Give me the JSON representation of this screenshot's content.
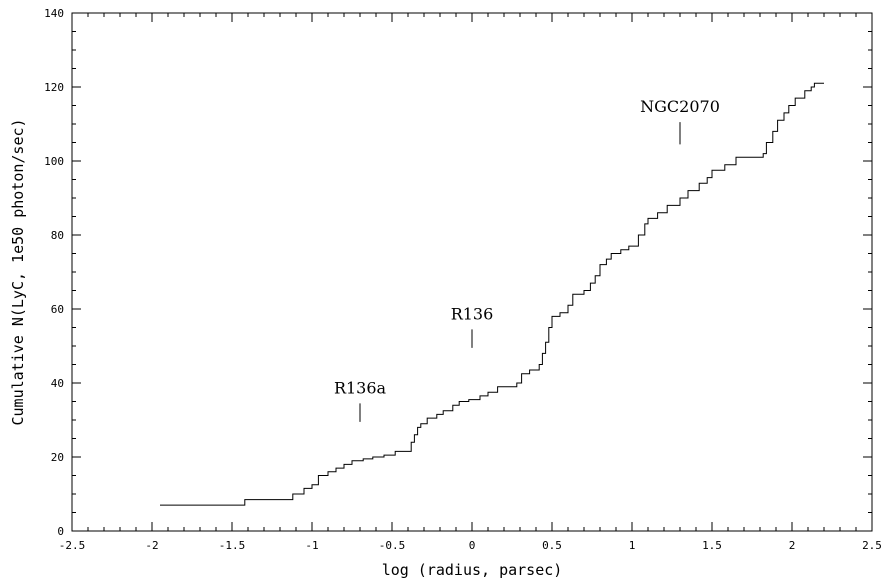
{
  "chart_data": {
    "type": "line",
    "xlabel": "log (radius, parsec)",
    "ylabel": "Cumulative N(LyC, 1e50 photon/sec)",
    "xlim": [
      -2.5,
      2.5
    ],
    "ylim": [
      0,
      140
    ],
    "xticks": [
      "-2.5",
      "-2",
      "-1.5",
      "-1",
      "-0.5",
      "0",
      "0.5",
      "1",
      "1.5",
      "2",
      "2.5"
    ],
    "yticks": [
      "0",
      "20",
      "40",
      "60",
      "80",
      "100",
      "120",
      "140"
    ],
    "grid": false,
    "line_shape": "step",
    "series": [
      {
        "points": [
          [
            -1.95,
            7
          ],
          [
            -1.42,
            7
          ],
          [
            -1.42,
            8.5
          ],
          [
            -1.12,
            8.5
          ],
          [
            -1.12,
            10
          ],
          [
            -1.05,
            10
          ],
          [
            -1.05,
            11.5
          ],
          [
            -1.0,
            11.5
          ],
          [
            -1.0,
            12.5
          ],
          [
            -0.96,
            12.5
          ],
          [
            -0.96,
            15
          ],
          [
            -0.9,
            15
          ],
          [
            -0.9,
            16
          ],
          [
            -0.85,
            16
          ],
          [
            -0.85,
            17
          ],
          [
            -0.8,
            17
          ],
          [
            -0.8,
            18
          ],
          [
            -0.75,
            18
          ],
          [
            -0.75,
            19
          ],
          [
            -0.68,
            19
          ],
          [
            -0.68,
            19.5
          ],
          [
            -0.62,
            19.5
          ],
          [
            -0.62,
            20
          ],
          [
            -0.55,
            20
          ],
          [
            -0.55,
            20.5
          ],
          [
            -0.48,
            20.5
          ],
          [
            -0.48,
            21.5
          ],
          [
            -0.38,
            21.5
          ],
          [
            -0.38,
            24
          ],
          [
            -0.36,
            24
          ],
          [
            -0.36,
            26
          ],
          [
            -0.34,
            26
          ],
          [
            -0.34,
            28
          ],
          [
            -0.32,
            28
          ],
          [
            -0.32,
            29
          ],
          [
            -0.28,
            29
          ],
          [
            -0.28,
            30.5
          ],
          [
            -0.22,
            30.5
          ],
          [
            -0.22,
            31.5
          ],
          [
            -0.18,
            31.5
          ],
          [
            -0.18,
            32.5
          ],
          [
            -0.12,
            32.5
          ],
          [
            -0.12,
            34
          ],
          [
            -0.08,
            34
          ],
          [
            -0.08,
            35
          ],
          [
            -0.02,
            35
          ],
          [
            -0.02,
            35.5
          ],
          [
            0.05,
            35.5
          ],
          [
            0.05,
            36.5
          ],
          [
            0.1,
            36.5
          ],
          [
            0.1,
            37.5
          ],
          [
            0.16,
            37.5
          ],
          [
            0.16,
            39
          ],
          [
            0.28,
            39
          ],
          [
            0.28,
            40
          ],
          [
            0.31,
            40
          ],
          [
            0.31,
            42.5
          ],
          [
            0.36,
            42.5
          ],
          [
            0.36,
            43.5
          ],
          [
            0.42,
            43.5
          ],
          [
            0.42,
            45
          ],
          [
            0.44,
            45
          ],
          [
            0.44,
            48
          ],
          [
            0.46,
            48
          ],
          [
            0.46,
            51
          ],
          [
            0.48,
            51
          ],
          [
            0.48,
            55
          ],
          [
            0.5,
            55
          ],
          [
            0.5,
            58
          ],
          [
            0.55,
            58
          ],
          [
            0.55,
            59
          ],
          [
            0.6,
            59
          ],
          [
            0.6,
            61
          ],
          [
            0.63,
            61
          ],
          [
            0.63,
            64
          ],
          [
            0.7,
            64
          ],
          [
            0.7,
            65
          ],
          [
            0.74,
            65
          ],
          [
            0.74,
            67
          ],
          [
            0.77,
            67
          ],
          [
            0.77,
            69
          ],
          [
            0.8,
            69
          ],
          [
            0.8,
            72
          ],
          [
            0.84,
            72
          ],
          [
            0.84,
            73.5
          ],
          [
            0.87,
            73.5
          ],
          [
            0.87,
            75
          ],
          [
            0.93,
            75
          ],
          [
            0.93,
            76
          ],
          [
            0.98,
            76
          ],
          [
            0.98,
            77
          ],
          [
            1.04,
            77
          ],
          [
            1.04,
            80
          ],
          [
            1.08,
            80
          ],
          [
            1.08,
            83
          ],
          [
            1.1,
            83
          ],
          [
            1.1,
            84.5
          ],
          [
            1.16,
            84.5
          ],
          [
            1.16,
            86
          ],
          [
            1.22,
            86
          ],
          [
            1.22,
            88
          ],
          [
            1.3,
            88
          ],
          [
            1.3,
            90
          ],
          [
            1.35,
            90
          ],
          [
            1.35,
            92
          ],
          [
            1.42,
            92
          ],
          [
            1.42,
            94
          ],
          [
            1.47,
            94
          ],
          [
            1.47,
            95.5
          ],
          [
            1.5,
            95.5
          ],
          [
            1.5,
            97.5
          ],
          [
            1.58,
            97.5
          ],
          [
            1.58,
            99
          ],
          [
            1.65,
            99
          ],
          [
            1.65,
            101
          ],
          [
            1.82,
            101
          ],
          [
            1.82,
            102
          ],
          [
            1.84,
            102
          ],
          [
            1.84,
            105
          ],
          [
            1.88,
            105
          ],
          [
            1.88,
            108
          ],
          [
            1.91,
            108
          ],
          [
            1.91,
            111
          ],
          [
            1.95,
            111
          ],
          [
            1.95,
            113
          ],
          [
            1.98,
            113
          ],
          [
            1.98,
            115
          ],
          [
            2.02,
            115
          ],
          [
            2.02,
            117
          ],
          [
            2.08,
            117
          ],
          [
            2.08,
            119
          ],
          [
            2.12,
            119
          ],
          [
            2.12,
            120
          ],
          [
            2.14,
            120
          ],
          [
            2.14,
            121
          ],
          [
            2.2,
            121
          ]
        ]
      }
    ],
    "annotations": [
      {
        "text": "R136a",
        "x": -0.7,
        "y_top": 34.5,
        "y_bottom": 29.5
      },
      {
        "text": "R136",
        "x": 0.0,
        "y_top": 54.5,
        "y_bottom": 49.5
      },
      {
        "text": "NGC2070",
        "x": 1.3,
        "y_top": 110.5,
        "y_bottom": 104.5
      }
    ]
  }
}
